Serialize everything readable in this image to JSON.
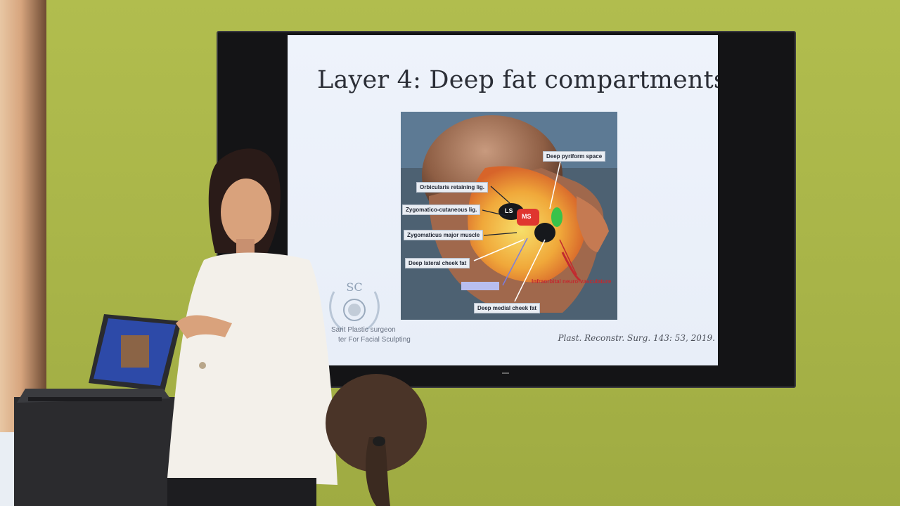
{
  "slide": {
    "title": "Layer 4: Deep fat compartments",
    "citation": "Plast. Reconstr. Surg. 143: 53, 2019.",
    "figure_labels": {
      "deep_pyriform_space": "Deep pyriform space",
      "orbicularis_retaining_lig": "Orbicularis retaining lig.",
      "zygomatico_cutaneous_lig": "Zygomatico-cutaneous lig.",
      "zygomaticus_major_muscle": "Zygomaticus major muscle",
      "deep_lateral_cheek_fat": "Deep lateral cheek fat",
      "infraorbital_neuro_vasculature": "Infraorbital neuro-vasculature",
      "deep_medial_cheek_fat": "Deep medial cheek fat",
      "ls": "LS",
      "ms": "MS"
    },
    "logo": {
      "monogram": "SC",
      "line1": "Sarit Plastic surgeon",
      "line2": "ter For Facial Sculpting"
    }
  },
  "colors": {
    "wall": "#a9b648",
    "tv_bezel": "#141416",
    "slide_bg": "#eef3fb",
    "label_red": "#c22a2f",
    "fat_yellow": "#f2c94c",
    "fat_orange": "#e8832a",
    "pyriform_green": "#39c24a"
  }
}
